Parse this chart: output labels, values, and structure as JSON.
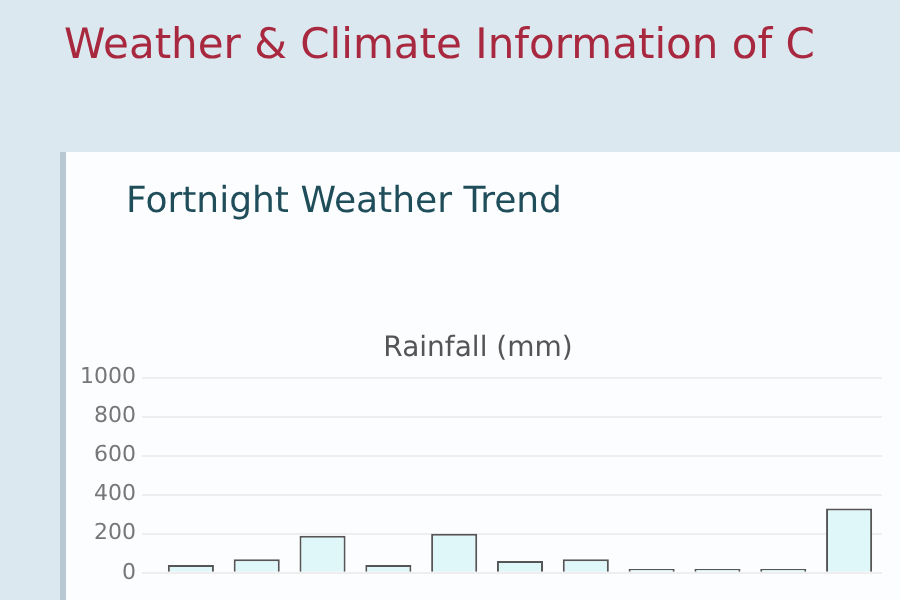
{
  "chart_data": {
    "type": "bar",
    "title": "Rainfall (mm)",
    "categories": [
      null,
      null,
      null,
      null,
      null,
      null,
      null,
      null,
      null,
      null,
      null
    ],
    "values": [
      40,
      70,
      190,
      40,
      200,
      60,
      70,
      20,
      20,
      20,
      330
    ],
    "color": "#e0f7fa",
    "ylim": [
      0,
      1000
    ],
    "yticks": [
      0,
      200,
      400,
      600,
      800,
      1000
    ],
    "grid": "y",
    "legend": false,
    "annotations": [
      "Weather & Climate Information of C",
      "Fortnight Weather Trend"
    ]
  }
}
